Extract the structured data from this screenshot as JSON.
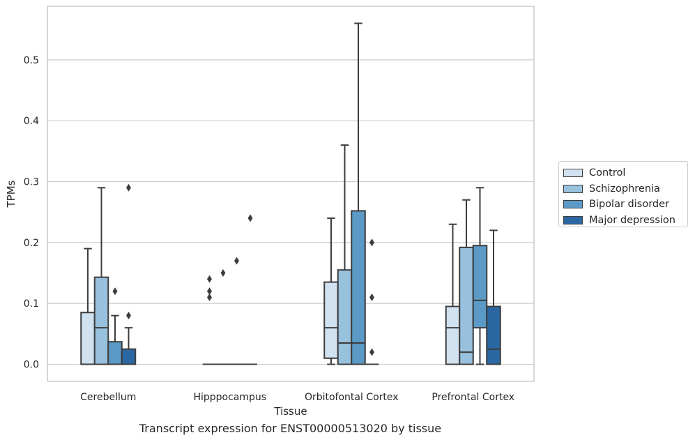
{
  "caption": "Transcript expression for ENST00000513020 by tissue",
  "chart_data": {
    "type": "box",
    "xlabel": "Tissue",
    "ylabel": "TPMs",
    "ylim": [
      -0.028,
      0.588
    ],
    "yticks": [
      "0.0",
      "0.1",
      "0.2",
      "0.3",
      "0.4",
      "0.5"
    ],
    "categories": [
      "Cerebellum",
      "Hipppocampus",
      "Orbitofontal Cortex",
      "Prefrontal Cortex"
    ],
    "grid": "horizontal",
    "legend_position": "right",
    "series": [
      {
        "name": "Control",
        "color": "#d0e1f0",
        "boxes": [
          {
            "min": 0.0,
            "q1": 0.0,
            "median": 0.0,
            "q3": 0.085,
            "max": 0.19,
            "outliers": []
          },
          {
            "min": 0.0,
            "q1": 0.0,
            "median": 0.0,
            "q3": 0.0,
            "max": 0.0,
            "outliers": [
              0.11,
              0.12,
              0.14
            ]
          },
          {
            "min": 0.0,
            "q1": 0.01,
            "median": 0.06,
            "q3": 0.135,
            "max": 0.24,
            "outliers": []
          },
          {
            "min": 0.0,
            "q1": 0.0,
            "median": 0.06,
            "q3": 0.095,
            "max": 0.23,
            "outliers": []
          }
        ]
      },
      {
        "name": "Schizophrenia",
        "color": "#98c1de",
        "boxes": [
          {
            "min": 0.0,
            "q1": 0.0,
            "median": 0.06,
            "q3": 0.143,
            "max": 0.29,
            "outliers": []
          },
          {
            "min": 0.0,
            "q1": 0.0,
            "median": 0.0,
            "q3": 0.0,
            "max": 0.0,
            "outliers": [
              0.15
            ]
          },
          {
            "min": 0.0,
            "q1": 0.0,
            "median": 0.035,
            "q3": 0.155,
            "max": 0.36,
            "outliers": []
          },
          {
            "min": 0.0,
            "q1": 0.0,
            "median": 0.02,
            "q3": 0.192,
            "max": 0.27,
            "outliers": []
          }
        ]
      },
      {
        "name": "Bipolar disorder",
        "color": "#5b9ac6",
        "boxes": [
          {
            "min": 0.0,
            "q1": 0.0,
            "median": 0.0,
            "q3": 0.037,
            "max": 0.08,
            "outliers": [
              0.12
            ]
          },
          {
            "min": 0.0,
            "q1": 0.0,
            "median": 0.0,
            "q3": 0.0,
            "max": 0.0,
            "outliers": [
              0.17
            ]
          },
          {
            "min": 0.0,
            "q1": 0.0,
            "median": 0.035,
            "q3": 0.252,
            "max": 0.56,
            "outliers": []
          },
          {
            "min": 0.0,
            "q1": 0.06,
            "median": 0.105,
            "q3": 0.195,
            "max": 0.29,
            "outliers": []
          }
        ]
      },
      {
        "name": "Major depression",
        "color": "#2b67a3",
        "boxes": [
          {
            "min": 0.0,
            "q1": 0.0,
            "median": 0.0,
            "q3": 0.025,
            "max": 0.06,
            "outliers": [
              0.08,
              0.29
            ]
          },
          {
            "min": 0.0,
            "q1": 0.0,
            "median": 0.0,
            "q3": 0.0,
            "max": 0.0,
            "outliers": [
              0.24
            ]
          },
          {
            "min": 0.0,
            "q1": 0.0,
            "median": 0.0,
            "q3": 0.0,
            "max": 0.0,
            "outliers": [
              0.02,
              0.11,
              0.2
            ]
          },
          {
            "min": 0.0,
            "q1": 0.0,
            "median": 0.025,
            "q3": 0.095,
            "max": 0.22,
            "outliers": []
          }
        ]
      }
    ]
  }
}
